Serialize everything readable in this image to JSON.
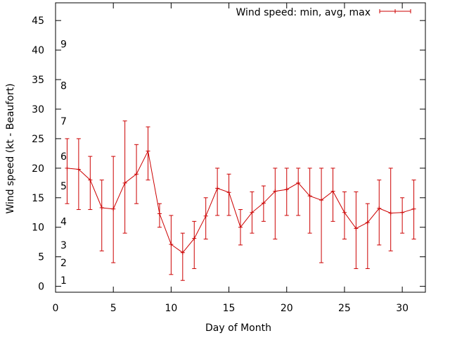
{
  "chart_data": {
    "type": "line",
    "title": "",
    "xlabel": "Day of Month",
    "ylabel": "Wind speed (kt - Beaufort)",
    "xlim": [
      0,
      32
    ],
    "ylim": [
      -1,
      48
    ],
    "xticks": [
      0,
      5,
      10,
      15,
      20,
      25,
      30
    ],
    "yticks": [
      0,
      5,
      10,
      15,
      20,
      25,
      30,
      35,
      40,
      45
    ],
    "beaufort_scale": [
      {
        "label": "1",
        "y": 1
      },
      {
        "label": "2",
        "y": 4
      },
      {
        "label": "3",
        "y": 7
      },
      {
        "label": "4",
        "y": 11
      },
      {
        "label": "5",
        "y": 17
      },
      {
        "label": "6",
        "y": 22
      },
      {
        "label": "7",
        "y": 28
      },
      {
        "label": "8",
        "y": 34
      },
      {
        "label": "9",
        "y": 41
      }
    ],
    "grid": false,
    "legend_position": "top-right",
    "series": [
      {
        "name": "Wind speed: min, avg, max",
        "color": "#cc0000",
        "x": [
          1,
          2,
          3,
          4,
          5,
          6,
          7,
          8,
          9,
          10,
          11,
          12,
          13,
          14,
          15,
          16,
          17,
          18,
          19,
          20,
          21,
          22,
          23,
          24,
          25,
          26,
          27,
          28,
          29,
          30,
          31
        ],
        "avg": [
          20,
          19.8,
          18,
          13.3,
          13.1,
          17.5,
          19,
          22.9,
          12.3,
          7.1,
          5.7,
          8.1,
          11.9,
          16.6,
          15.9,
          10,
          12.5,
          14.1,
          16.1,
          16.4,
          17.5,
          15.3,
          14.6,
          16.1,
          12.5,
          9.8,
          10.8,
          13.2,
          12.4,
          12.5,
          13.1
        ],
        "min": [
          14,
          13,
          13,
          6,
          4,
          9,
          14,
          18,
          10,
          2,
          1,
          3,
          8,
          12,
          12,
          7,
          9,
          11,
          8,
          12,
          12,
          9,
          4,
          11,
          8,
          3,
          3,
          7,
          6,
          9,
          8
        ],
        "max": [
          25,
          25,
          22,
          18,
          22,
          28,
          24,
          27,
          14,
          12,
          9,
          11,
          15,
          20,
          19,
          13,
          16,
          17,
          20,
          20,
          20,
          20,
          20,
          20,
          16,
          16,
          14,
          18,
          20,
          15,
          18
        ]
      }
    ]
  }
}
